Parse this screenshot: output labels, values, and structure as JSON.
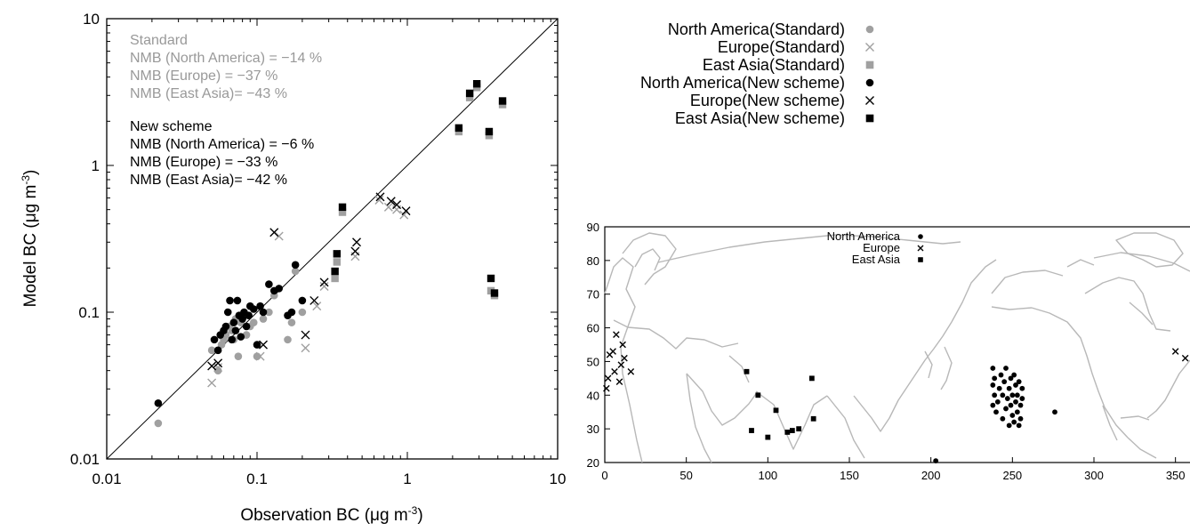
{
  "chart_data": [
    {
      "type": "scatter",
      "xlabel": "Observation BC (μg m",
      "xlabel_sup": "-3",
      "xlabel_end": ")",
      "ylabel": "Model BC (μg m",
      "ylabel_sup": "-3",
      "ylabel_end": ")",
      "xscale": "log",
      "yscale": "log",
      "xlim": [
        0.01,
        10
      ],
      "ylim": [
        0.01,
        10
      ],
      "x_ticks": [
        "0.01",
        "0.1",
        "1",
        "10"
      ],
      "y_ticks": [
        "0.01",
        "0.1",
        "1",
        "10"
      ],
      "reference_line": "1:1",
      "annotations": {
        "standard": [
          "Standard",
          "NMB (North America) = −14 %",
          "NMB (Europe) = −37 %",
          "NMB (East Asia)= −43 %"
        ],
        "new": [
          "New scheme",
          "NMB (North America) = −6 %",
          "NMB (Europe) = −33 %",
          "NMB (East Asia)= −42 %"
        ]
      },
      "legend": [
        "North America(Standard)",
        "Europe(Standard)",
        "East Asia(Standard)",
        "North America(New scheme)",
        "Europe(New scheme)",
        "East Asia(New scheme)"
      ],
      "series": [
        {
          "name": "North America(Standard)",
          "marker": "circle",
          "color": "#a0a0a0",
          "points": [
            [
              0.022,
              0.0175
            ],
            [
              0.05,
              0.055
            ],
            [
              0.055,
              0.04
            ],
            [
              0.058,
              0.06
            ],
            [
              0.06,
              0.065
            ],
            [
              0.062,
              0.07
            ],
            [
              0.065,
              0.08
            ],
            [
              0.068,
              0.075
            ],
            [
              0.07,
              0.065
            ],
            [
              0.072,
              0.09
            ],
            [
              0.075,
              0.05
            ],
            [
              0.078,
              0.085
            ],
            [
              0.082,
              0.095
            ],
            [
              0.085,
              0.07
            ],
            [
              0.09,
              0.08
            ],
            [
              0.095,
              0.085
            ],
            [
              0.1,
              0.05
            ],
            [
              0.11,
              0.09
            ],
            [
              0.12,
              0.1
            ],
            [
              0.13,
              0.13
            ],
            [
              0.16,
              0.065
            ],
            [
              0.17,
              0.085
            ],
            [
              0.18,
              0.19
            ],
            [
              0.2,
              0.1
            ]
          ]
        },
        {
          "name": "Europe(Standard)",
          "marker": "x",
          "color": "#a0a0a0",
          "points": [
            [
              0.05,
              0.033
            ],
            [
              0.055,
              0.042
            ],
            [
              0.105,
              0.05
            ],
            [
              0.14,
              0.33
            ],
            [
              0.21,
              0.057
            ],
            [
              0.25,
              0.11
            ],
            [
              0.28,
              0.15
            ],
            [
              0.45,
              0.24
            ],
            [
              0.65,
              0.58
            ],
            [
              0.75,
              0.52
            ],
            [
              0.85,
              0.5
            ],
            [
              0.95,
              0.46
            ]
          ]
        },
        {
          "name": "East Asia(Standard)",
          "marker": "square",
          "color": "#a0a0a0",
          "points": [
            [
              0.33,
              0.17
            ],
            [
              0.34,
              0.22
            ],
            [
              0.37,
              0.48
            ],
            [
              2.2,
              1.7
            ],
            [
              2.6,
              2.9
            ],
            [
              2.9,
              3.4
            ],
            [
              3.5,
              1.6
            ],
            [
              3.6,
              0.14
            ],
            [
              3.8,
              0.13
            ],
            [
              4.3,
              2.6
            ]
          ]
        },
        {
          "name": "North America(New scheme)",
          "marker": "circle",
          "color": "#000000",
          "points": [
            [
              0.022,
              0.024
            ],
            [
              0.052,
              0.065
            ],
            [
              0.055,
              0.055
            ],
            [
              0.057,
              0.07
            ],
            [
              0.06,
              0.075
            ],
            [
              0.062,
              0.08
            ],
            [
              0.064,
              0.1
            ],
            [
              0.066,
              0.12
            ],
            [
              0.068,
              0.065
            ],
            [
              0.07,
              0.085
            ],
            [
              0.072,
              0.075
            ],
            [
              0.074,
              0.12
            ],
            [
              0.076,
              0.095
            ],
            [
              0.078,
              0.068
            ],
            [
              0.08,
              0.09
            ],
            [
              0.082,
              0.1
            ],
            [
              0.085,
              0.08
            ],
            [
              0.088,
              0.095
            ],
            [
              0.09,
              0.11
            ],
            [
              0.095,
              0.105
            ],
            [
              0.1,
              0.06
            ],
            [
              0.105,
              0.11
            ],
            [
              0.11,
              0.1
            ],
            [
              0.12,
              0.155
            ],
            [
              0.13,
              0.14
            ],
            [
              0.14,
              0.145
            ],
            [
              0.16,
              0.095
            ],
            [
              0.17,
              0.1
            ],
            [
              0.18,
              0.21
            ],
            [
              0.2,
              0.12
            ]
          ]
        },
        {
          "name": "Europe(New scheme)",
          "marker": "x",
          "color": "#000000",
          "points": [
            [
              0.05,
              0.043
            ],
            [
              0.055,
              0.045
            ],
            [
              0.11,
              0.06
            ],
            [
              0.13,
              0.35
            ],
            [
              0.21,
              0.07
            ],
            [
              0.24,
              0.12
            ],
            [
              0.28,
              0.16
            ],
            [
              0.45,
              0.26
            ],
            [
              0.46,
              0.3
            ],
            [
              0.66,
              0.61
            ],
            [
              0.78,
              0.57
            ],
            [
              0.85,
              0.54
            ],
            [
              0.98,
              0.49
            ]
          ]
        },
        {
          "name": "East Asia(New scheme)",
          "marker": "square",
          "color": "#000000",
          "points": [
            [
              0.33,
              0.19
            ],
            [
              0.34,
              0.25
            ],
            [
              0.37,
              0.52
            ],
            [
              2.2,
              1.8
            ],
            [
              2.6,
              3.1
            ],
            [
              2.9,
              3.6
            ],
            [
              3.5,
              1.7
            ],
            [
              3.6,
              0.17
            ],
            [
              3.8,
              0.135
            ],
            [
              4.3,
              2.75
            ]
          ]
        }
      ]
    },
    {
      "type": "scatter",
      "subtype": "site-map",
      "xlim": [
        0,
        360
      ],
      "ylim": [
        20,
        90
      ],
      "x_ticks": [
        "0",
        "50",
        "100",
        "150",
        "200",
        "250",
        "300",
        "350"
      ],
      "y_ticks": [
        "20",
        "30",
        "40",
        "50",
        "60",
        "70",
        "80",
        "90"
      ],
      "background": "world coastlines",
      "legend": [
        "North America",
        "Europe",
        "East Asia"
      ],
      "series": [
        {
          "name": "North America",
          "marker": "circle",
          "points": [
            [
              203,
              20.5
            ],
            [
              238,
              48
            ],
            [
              239,
              45
            ],
            [
              238,
              43
            ],
            [
              239,
              40
            ],
            [
              238,
              37
            ],
            [
              240,
              35
            ],
            [
              241,
              38
            ],
            [
              242,
              42
            ],
            [
              243,
              46
            ],
            [
              244,
              33
            ],
            [
              244,
              40
            ],
            [
              245,
              44
            ],
            [
              246,
              36
            ],
            [
              246,
              48
            ],
            [
              247,
              39
            ],
            [
              248,
              42
            ],
            [
              248,
              31
            ],
            [
              249,
              37
            ],
            [
              249,
              45
            ],
            [
              250,
              34
            ],
            [
              250,
              40
            ],
            [
              251,
              46
            ],
            [
              251,
              32
            ],
            [
              252,
              38
            ],
            [
              252,
              43
            ],
            [
              253,
              35
            ],
            [
              253,
              40
            ],
            [
              254,
              44
            ],
            [
              254,
              31
            ],
            [
              255,
              37
            ],
            [
              255,
              33
            ],
            [
              256,
              39
            ],
            [
              256,
              42
            ],
            [
              276,
              35
            ]
          ]
        },
        {
          "name": "Europe",
          "marker": "x",
          "points": [
            [
              1,
              42
            ],
            [
              2,
              45
            ],
            [
              3,
              52
            ],
            [
              5,
              53
            ],
            [
              6,
              47
            ],
            [
              7,
              58
            ],
            [
              9,
              44
            ],
            [
              10,
              49
            ],
            [
              11,
              55
            ],
            [
              12,
              51
            ],
            [
              16,
              47
            ],
            [
              350,
              53
            ],
            [
              356,
              51
            ]
          ]
        },
        {
          "name": "East Asia",
          "marker": "square",
          "points": [
            [
              87,
              47
            ],
            [
              90,
              29.5
            ],
            [
              94,
              40
            ],
            [
              100,
              27.5
            ],
            [
              105,
              35.5
            ],
            [
              112,
              29
            ],
            [
              115,
              29.5
            ],
            [
              119,
              30
            ],
            [
              127,
              45
            ],
            [
              128,
              33
            ]
          ]
        }
      ]
    }
  ]
}
